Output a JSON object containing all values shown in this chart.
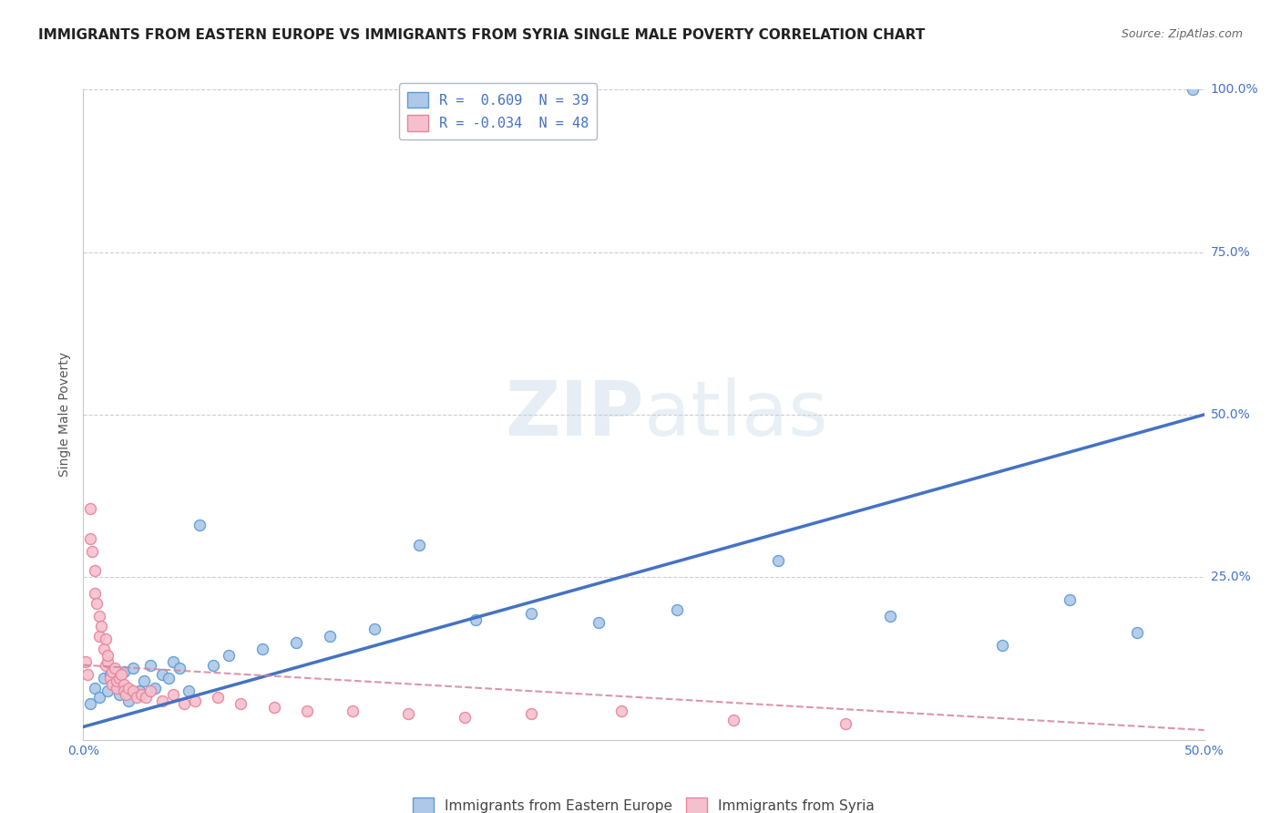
{
  "title": "IMMIGRANTS FROM EASTERN EUROPE VS IMMIGRANTS FROM SYRIA SINGLE MALE POVERTY CORRELATION CHART",
  "source": "Source: ZipAtlas.com",
  "ylabel": "Single Male Poverty",
  "xlim": [
    0.0,
    0.5
  ],
  "ylim": [
    0.0,
    1.0
  ],
  "xtick_labels": [
    "0.0%",
    "50.0%"
  ],
  "xtick_positions": [
    0.0,
    0.5
  ],
  "ytick_labels": [
    "100.0%",
    "75.0%",
    "50.0%",
    "25.0%"
  ],
  "ytick_positions": [
    1.0,
    0.75,
    0.5,
    0.25
  ],
  "grid_color": "#c8c8d0",
  "legend_R_blue": "R =  0.609  N = 39",
  "legend_R_pink": "R = -0.034  N = 48",
  "blue_face": "#aec8e8",
  "blue_edge": "#5b9bd5",
  "pink_face": "#f5c0ce",
  "pink_edge": "#e8839a",
  "trend_blue": "#4472c4",
  "trend_pink": "#d4849a",
  "blue_scatter_x": [
    0.003,
    0.005,
    0.007,
    0.009,
    0.011,
    0.012,
    0.014,
    0.015,
    0.016,
    0.018,
    0.02,
    0.022,
    0.025,
    0.027,
    0.03,
    0.032,
    0.035,
    0.038,
    0.04,
    0.043,
    0.047,
    0.052,
    0.058,
    0.065,
    0.08,
    0.095,
    0.11,
    0.13,
    0.15,
    0.175,
    0.2,
    0.23,
    0.265,
    0.31,
    0.36,
    0.41,
    0.44,
    0.47,
    0.495
  ],
  "blue_scatter_y": [
    0.055,
    0.08,
    0.065,
    0.095,
    0.075,
    0.1,
    0.085,
    0.09,
    0.07,
    0.105,
    0.06,
    0.11,
    0.075,
    0.09,
    0.115,
    0.08,
    0.1,
    0.095,
    0.12,
    0.11,
    0.075,
    0.33,
    0.115,
    0.13,
    0.14,
    0.15,
    0.16,
    0.17,
    0.3,
    0.185,
    0.195,
    0.18,
    0.2,
    0.275,
    0.19,
    0.145,
    0.215,
    0.165,
    1.0
  ],
  "pink_scatter_x": [
    0.001,
    0.002,
    0.003,
    0.003,
    0.004,
    0.005,
    0.005,
    0.006,
    0.007,
    0.007,
    0.008,
    0.009,
    0.01,
    0.01,
    0.011,
    0.011,
    0.012,
    0.013,
    0.013,
    0.014,
    0.015,
    0.015,
    0.016,
    0.017,
    0.018,
    0.018,
    0.019,
    0.02,
    0.022,
    0.024,
    0.026,
    0.028,
    0.03,
    0.035,
    0.04,
    0.045,
    0.05,
    0.06,
    0.07,
    0.085,
    0.1,
    0.12,
    0.145,
    0.17,
    0.2,
    0.24,
    0.29,
    0.34
  ],
  "pink_scatter_y": [
    0.12,
    0.1,
    0.355,
    0.31,
    0.29,
    0.26,
    0.225,
    0.21,
    0.19,
    0.16,
    0.175,
    0.14,
    0.155,
    0.115,
    0.12,
    0.13,
    0.095,
    0.085,
    0.105,
    0.11,
    0.08,
    0.09,
    0.095,
    0.1,
    0.085,
    0.075,
    0.07,
    0.08,
    0.075,
    0.065,
    0.07,
    0.065,
    0.075,
    0.06,
    0.07,
    0.055,
    0.06,
    0.065,
    0.055,
    0.05,
    0.045,
    0.045,
    0.04,
    0.035,
    0.04,
    0.045,
    0.03,
    0.025
  ],
  "blue_trend_x": [
    0.0,
    0.5
  ],
  "blue_trend_y": [
    0.02,
    0.5
  ],
  "pink_trend_x": [
    0.0,
    0.5
  ],
  "pink_trend_y": [
    0.115,
    0.015
  ],
  "background": "#ffffff",
  "title_fontsize": 11,
  "tick_fontsize": 10,
  "legend_fontsize": 11,
  "source_fontsize": 9
}
